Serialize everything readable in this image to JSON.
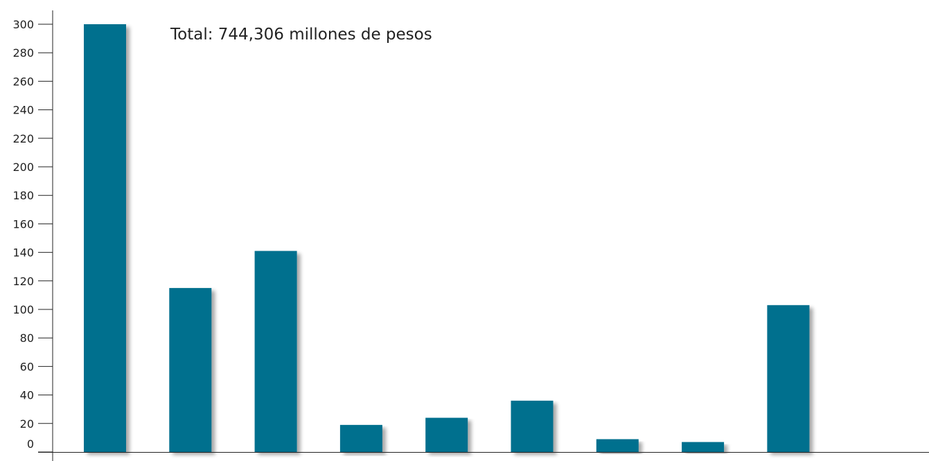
{
  "chart_data": {
    "type": "bar",
    "categories": [
      "",
      "",
      "",
      "",
      "",
      "",
      "",
      "",
      ""
    ],
    "values": [
      300,
      115,
      141,
      19,
      24,
      36,
      9,
      7,
      103
    ],
    "annotation": "Total: 744,306 millones de pesos",
    "ylim": [
      0,
      300
    ],
    "yticks": [
      0,
      20,
      40,
      60,
      80,
      100,
      120,
      140,
      160,
      180,
      200,
      220,
      240,
      260,
      280,
      300
    ],
    "grid": false,
    "bar_color": "#006f8e",
    "shadow_color": "#c8c8c8"
  }
}
